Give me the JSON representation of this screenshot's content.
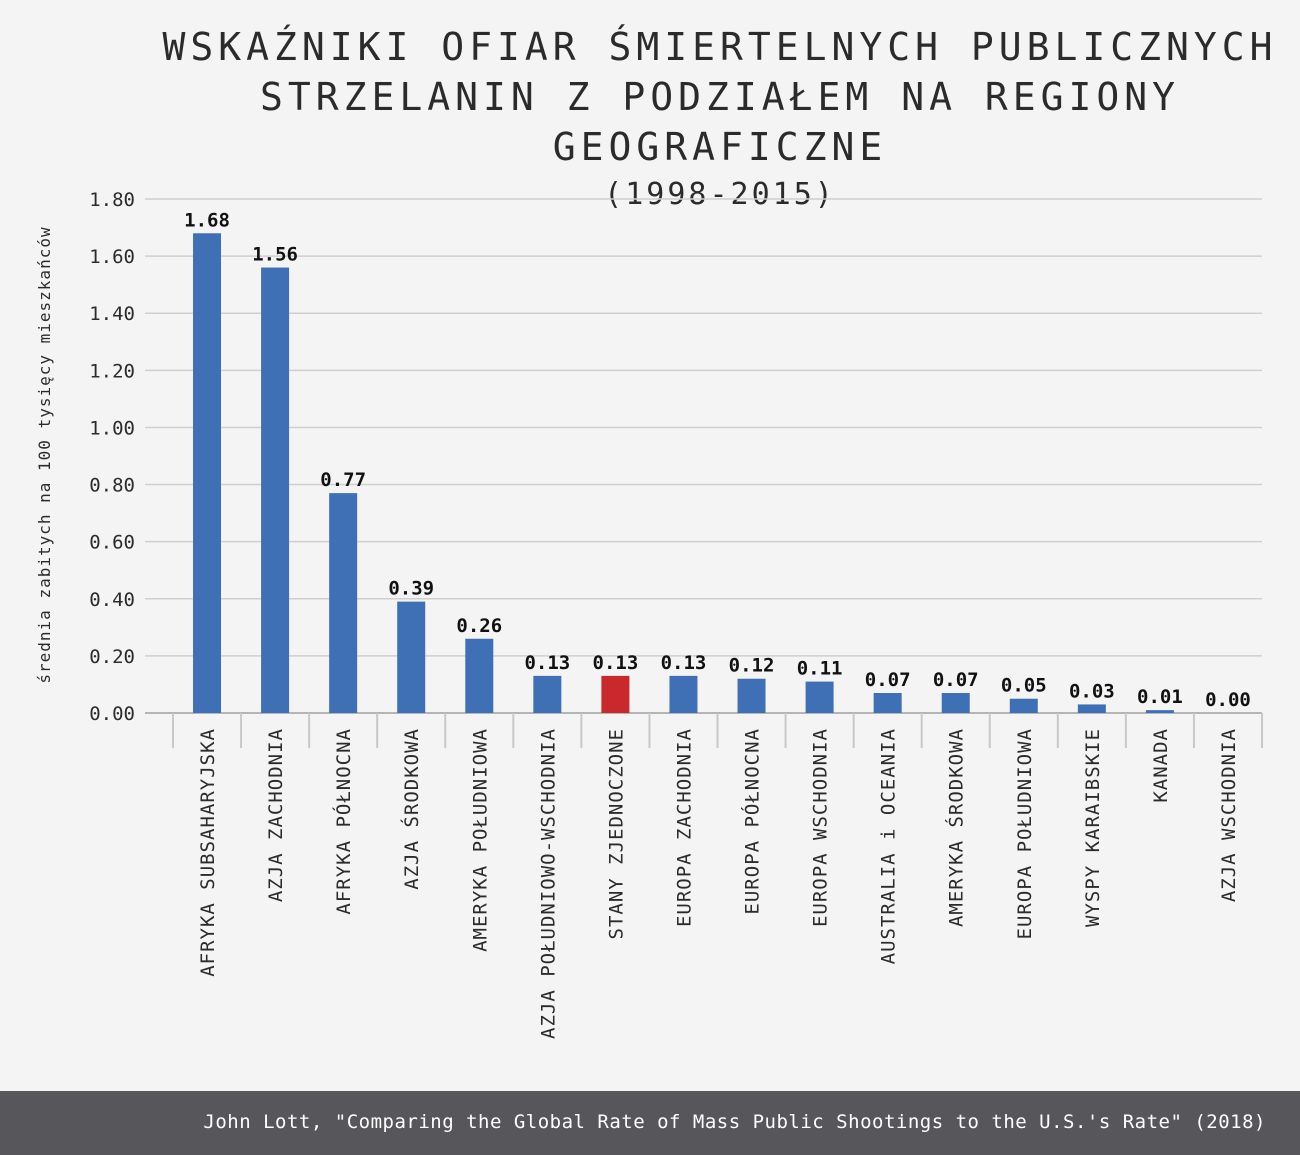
{
  "chart_data": {
    "type": "bar",
    "title_lines": [
      "WSKAŹNIKI OFIAR ŚMIERTELNYCH PUBLICZNYCH",
      "STRZELANIN Z PODZIAŁEM NA REGIONY GEOGRAFICZNE"
    ],
    "subtitle": "(1998-2015)",
    "ylabel": "średnia zabitych na 100 tysięcy mieszkańców",
    "xlabel": "",
    "ylim": [
      0,
      1.8
    ],
    "yticks": [
      "0.00",
      "0.20",
      "0.40",
      "0.60",
      "0.80",
      "1.00",
      "1.20",
      "1.40",
      "1.60",
      "1.80"
    ],
    "grid": true,
    "categories": [
      "AFRYKA SUBSAHARYJSKA",
      "AZJA ZACHODNIA",
      "AFRYKA PÓŁNOCNA",
      "AZJA ŚRODKOWA",
      "AMERYKA POŁUDNIOWA",
      "AZJA POŁUDNIOWO-WSCHODNIA",
      "STANY ZJEDNOCZONE",
      "EUROPA ZACHODNIA",
      "EUROPA PÓŁNOCNA",
      "EUROPA WSCHODNIA",
      "AUSTRALIA i OCEANIA",
      "AMERYKA ŚRODKOWA",
      "EUROPA POŁUDNIOWA",
      "WYSPY KARAIBSKIE",
      "KANADA",
      "AZJA WSCHODNIA"
    ],
    "values": [
      1.68,
      1.56,
      0.77,
      0.39,
      0.26,
      0.13,
      0.13,
      0.13,
      0.12,
      0.11,
      0.07,
      0.07,
      0.05,
      0.03,
      0.01,
      0.0
    ],
    "value_labels": [
      "1.68",
      "1.56",
      "0.77",
      "0.39",
      "0.26",
      "0.13",
      "0.13",
      "0.13",
      "0.12",
      "0.11",
      "0.07",
      "0.07",
      "0.05",
      "0.03",
      "0.01",
      "0.00"
    ],
    "colors": {
      "default": "#3f6fb5",
      "highlight": "#c9282d",
      "highlight_category": "STANY ZJEDNOCZONE"
    }
  },
  "footer": {
    "source": "John Lott, \"Comparing the Global Rate of Mass Public Shootings to the U.S.'s Rate\" (2018)"
  }
}
